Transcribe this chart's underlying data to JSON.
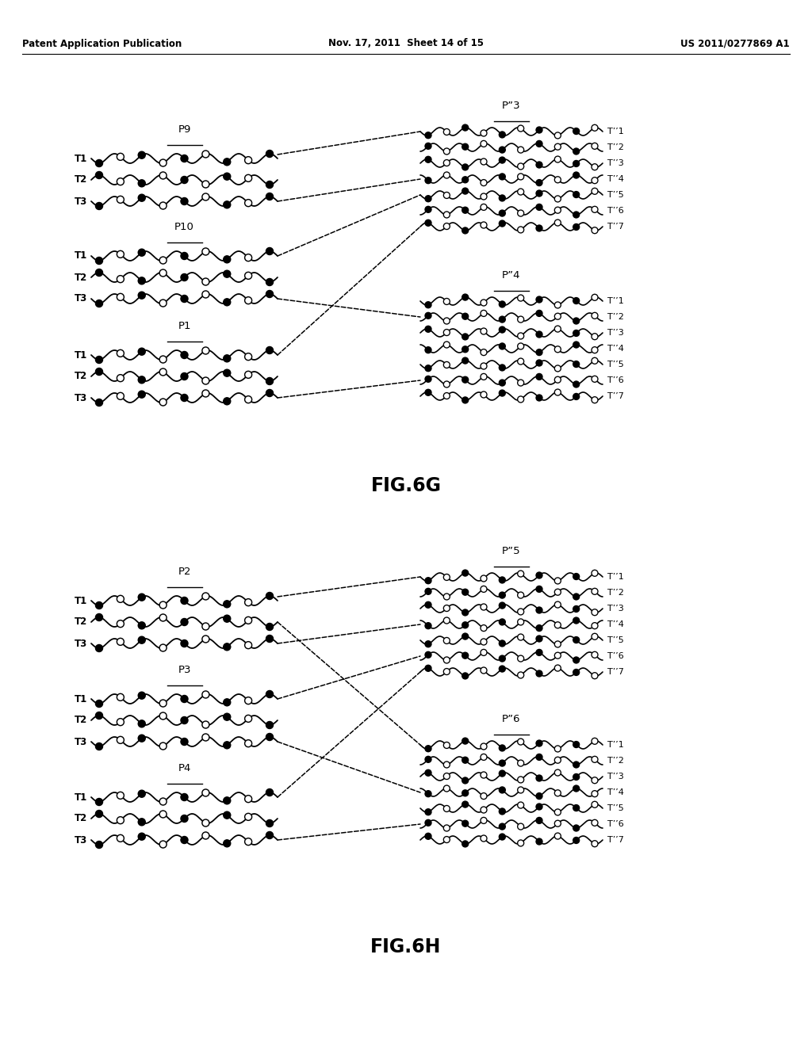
{
  "header_left": "Patent Application Publication",
  "header_mid": "Nov. 17, 2011  Sheet 14 of 15",
  "header_right": "US 2011/0277869 A1",
  "fig_top_label": "FIG.6G",
  "fig_bot_label": "FIG.6H",
  "background": "#ffffff"
}
